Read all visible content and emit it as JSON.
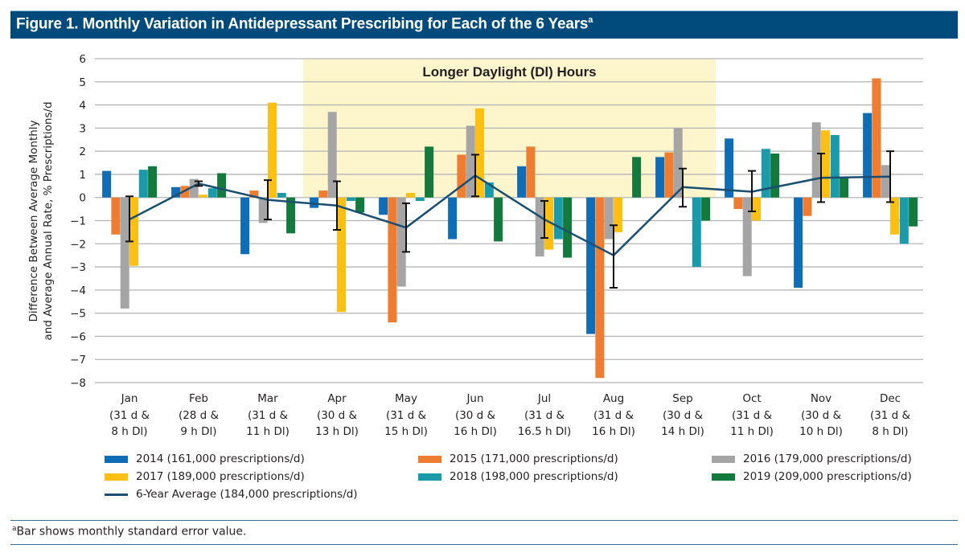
{
  "figure": {
    "title": "Figure 1. Monthly Variation in Antidepressant Prescribing for Each of the 6 Years",
    "title_superscript": "a",
    "footnote_marker": "a",
    "footnote": "Bar shows monthly standard error value.",
    "title_bar_color": "#004a7c"
  },
  "chart_data": {
    "type": "bar",
    "title": "Monthly Variation in Antidepressant Prescribing for Each of the 6 Years",
    "xlabel": "",
    "ylabel_lines": [
      "Difference Between Average Monthly",
      "and Average Annual Rate, % Prescriptions/d"
    ],
    "ylim": [
      -8,
      6
    ],
    "yticks": [
      6,
      5,
      4,
      3,
      2,
      1,
      0,
      -1,
      -2,
      -3,
      -4,
      -5,
      -6,
      -7,
      -8
    ],
    "ytick_labels": [
      "6",
      "5",
      "4",
      "3",
      "2",
      "1",
      "0",
      "−1",
      "−2",
      "−3",
      "−4",
      "−5",
      "−6",
      "−7",
      "−8"
    ],
    "grid": true,
    "legend_position": "bottom",
    "categories": [
      "Jan",
      "Feb",
      "Mar",
      "Apr",
      "May",
      "Jun",
      "Jul",
      "Aug",
      "Sep",
      "Oct",
      "Nov",
      "Dec"
    ],
    "category_sublabels": [
      [
        "(31 d &",
        "8 h Dl)"
      ],
      [
        "(28 d &",
        "9 h Dl)"
      ],
      [
        "(31 d &",
        "11 h Dl)"
      ],
      [
        "(30 d &",
        "13 h Dl)"
      ],
      [
        "(31 d &",
        "15 h Dl)"
      ],
      [
        "(30 d &",
        "16 h Dl)"
      ],
      [
        "(31 d &",
        "16.5 h Dl)"
      ],
      [
        "(31 d &",
        "16 h Dl)"
      ],
      [
        "(30 d &",
        "14 h Dl)"
      ],
      [
        "(31 d &",
        "11 h Dl)"
      ],
      [
        "(30 d &",
        "10 h Dl)"
      ],
      [
        "(31 d &",
        "8 h Dl)"
      ]
    ],
    "shaded_region": {
      "label": "Longer Daylight (Dl) Hours",
      "from_category": "Apr",
      "to_category": "Sep",
      "y_range": [
        0,
        6
      ],
      "color": "#fdf6cc"
    },
    "series": [
      {
        "name": "2014 (161,000 prescriptions/d)",
        "color": "#0f6db8",
        "values": [
          1.15,
          0.45,
          -2.45,
          -0.45,
          -0.75,
          -1.8,
          1.35,
          -5.9,
          1.75,
          2.55,
          -3.9,
          3.65
        ]
      },
      {
        "name": "2015 (171,000 prescriptions/d)",
        "color": "#ef7d31",
        "values": [
          -1.6,
          0.5,
          0.3,
          0.3,
          -5.4,
          1.85,
          2.2,
          -7.8,
          1.95,
          -0.5,
          -0.8,
          5.15
        ]
      },
      {
        "name": "2016 (179,000 prescriptions/d)",
        "color": "#a5a5a5",
        "values": [
          -4.8,
          0.8,
          -1.1,
          3.7,
          -3.85,
          3.1,
          -2.55,
          -1.8,
          3.0,
          -3.4,
          3.25,
          1.4
        ]
      },
      {
        "name": "2017 (189,000 prescriptions/d)",
        "color": "#fdbf12",
        "values": [
          -2.95,
          0.12,
          4.1,
          -4.95,
          0.2,
          3.85,
          -2.25,
          -1.5,
          0.0,
          -1.0,
          2.9,
          -1.6
        ]
      },
      {
        "name": "2018 (198,000 prescriptions/d)",
        "color": "#1b9aaa",
        "values": [
          1.2,
          0.4,
          0.2,
          -0.15,
          -0.15,
          0.65,
          -1.8,
          0.0,
          -3.0,
          2.1,
          2.7,
          -2.0
        ]
      },
      {
        "name": "2019 (209,000 prescriptions/d)",
        "color": "#13793d",
        "values": [
          1.35,
          1.05,
          -1.55,
          -0.65,
          2.2,
          -1.9,
          -2.6,
          1.75,
          -1.0,
          1.9,
          0.85,
          -1.25
        ]
      }
    ],
    "average_line": {
      "name": "6-Year Average (184,000 prescriptions/d)",
      "color": "#1b4f72",
      "values": [
        -0.95,
        0.6,
        -0.1,
        -0.35,
        -1.3,
        0.95,
        -0.95,
        -2.5,
        0.45,
        0.25,
        0.85,
        0.9
      ],
      "error_upper": [
        0.05,
        0.7,
        0.75,
        0.7,
        -0.25,
        1.85,
        -0.15,
        -1.2,
        1.25,
        1.15,
        1.9,
        2.0
      ],
      "error_lower": [
        -1.9,
        0.5,
        -0.95,
        -1.4,
        -2.35,
        0.05,
        -1.75,
        -3.9,
        -0.4,
        -0.6,
        -0.2,
        -0.2
      ]
    }
  }
}
